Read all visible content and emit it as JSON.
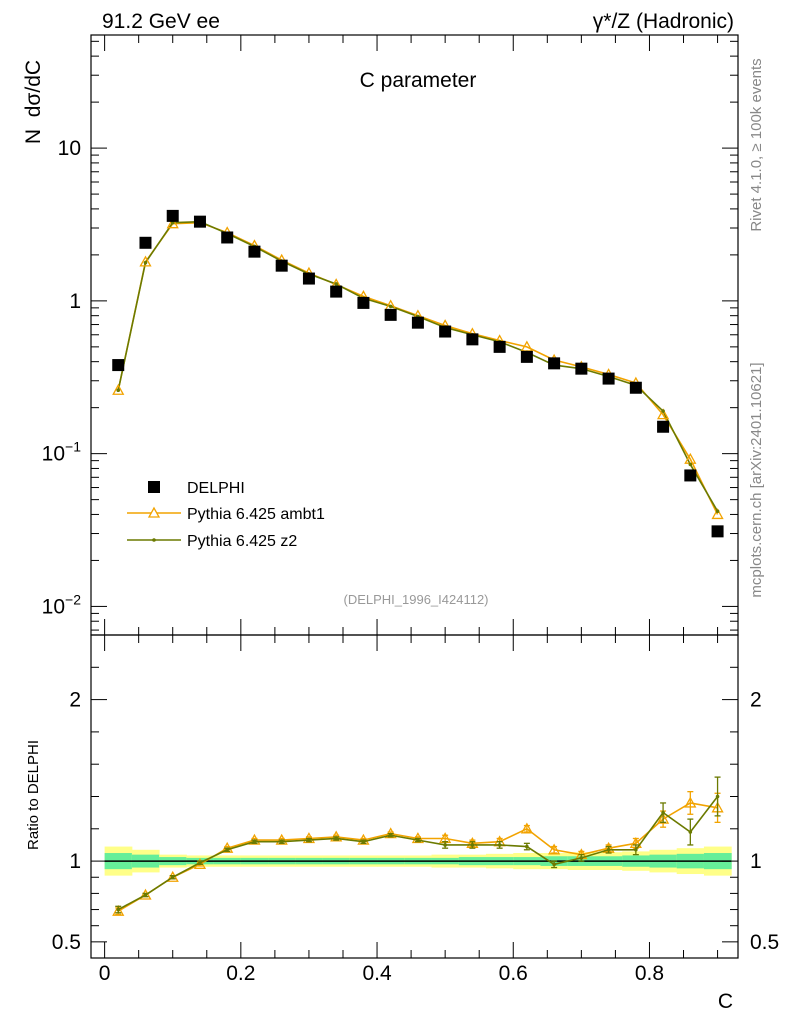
{
  "header": {
    "left": "91.2 GeV ee",
    "right": "γ*/Z (Hadronic)"
  },
  "side_labels": {
    "rivet": "Rivet 4.1.0, ≥ 100k events",
    "mcplots": "mcplots.cern.ch [arXiv:2401.10621]"
  },
  "chart_data": [
    {
      "panel": "main",
      "type": "scatter",
      "title": "C parameter",
      "xlabel": "C",
      "ylabel": "N  dσ/dC",
      "yscale": "log",
      "xlim": [
        -0.02,
        0.93
      ],
      "ylim": [
        0.0065,
        55
      ],
      "ytick_labels": [
        {
          "value": 0.01,
          "base": "10",
          "exp": "−2"
        },
        {
          "value": 0.1,
          "base": "10",
          "exp": "−1"
        },
        {
          "value": 1,
          "base": "1",
          "exp": ""
        },
        {
          "value": 10,
          "base": "10",
          "exp": ""
        }
      ],
      "watermark": "(DELPHI_1996_I424112)",
      "legend_position": "left",
      "x": [
        0.02,
        0.06,
        0.1,
        0.14,
        0.18,
        0.22,
        0.26,
        0.3,
        0.34,
        0.38,
        0.42,
        0.46,
        0.5,
        0.54,
        0.58,
        0.62,
        0.66,
        0.7,
        0.74,
        0.78,
        0.82,
        0.86,
        0.9
      ],
      "series": [
        {
          "name": "DELPHI",
          "color": "#000000",
          "marker": "square",
          "values": [
            0.38,
            2.4,
            3.6,
            3.3,
            2.6,
            2.1,
            1.7,
            1.4,
            1.15,
            0.97,
            0.81,
            0.72,
            0.63,
            0.56,
            0.5,
            0.43,
            0.39,
            0.36,
            0.31,
            0.27,
            0.15,
            0.072,
            0.031
          ]
        },
        {
          "name": "Pythia 6.425 ambt1",
          "color": "#f2a300",
          "marker": "triangle",
          "values": [
            0.26,
            1.8,
            3.2,
            3.25,
            2.8,
            2.3,
            1.85,
            1.52,
            1.28,
            1.07,
            0.93,
            0.8,
            0.69,
            0.61,
            0.55,
            0.5,
            0.41,
            0.37,
            0.33,
            0.29,
            0.18,
            0.092,
            0.04
          ]
        },
        {
          "name": "Pythia 6.425 z2",
          "color": "#6b7a00",
          "marker": "dot",
          "values": [
            0.26,
            1.78,
            3.25,
            3.3,
            2.76,
            2.27,
            1.82,
            1.5,
            1.29,
            1.04,
            0.92,
            0.79,
            0.67,
            0.6,
            0.54,
            0.46,
            0.38,
            0.36,
            0.32,
            0.28,
            0.19,
            0.085,
            0.042
          ]
        }
      ]
    },
    {
      "panel": "ratio",
      "type": "line",
      "ylabel": "Ratio to DELPHI",
      "xlabel": "C",
      "xlim": [
        -0.02,
        0.93
      ],
      "ylim": [
        0.4,
        2.4
      ],
      "yticks": [
        0.5,
        1,
        2
      ],
      "ytick_labels": [
        "0.5",
        "1",
        "2"
      ],
      "xticks": [
        0,
        0.2,
        0.4,
        0.6,
        0.8
      ],
      "xtick_labels": [
        "0",
        "0.2",
        "0.4",
        "0.6",
        "0.8"
      ],
      "reference": 1,
      "bands": {
        "x_edges": [
          0.0,
          0.04,
          0.08,
          0.12,
          0.16,
          0.2,
          0.24,
          0.28,
          0.32,
          0.36,
          0.4,
          0.44,
          0.48,
          0.52,
          0.56,
          0.6,
          0.64,
          0.68,
          0.72,
          0.76,
          0.8,
          0.84,
          0.88,
          0.92
        ],
        "inner": [
          0.05,
          0.04,
          0.025,
          0.02,
          0.02,
          0.02,
          0.02,
          0.02,
          0.02,
          0.02,
          0.02,
          0.02,
          0.02,
          0.025,
          0.025,
          0.025,
          0.03,
          0.03,
          0.03,
          0.035,
          0.04,
          0.045,
          0.05
        ],
        "outer": [
          0.09,
          0.07,
          0.04,
          0.035,
          0.035,
          0.035,
          0.035,
          0.035,
          0.035,
          0.035,
          0.035,
          0.035,
          0.04,
          0.04,
          0.045,
          0.05,
          0.05,
          0.055,
          0.055,
          0.06,
          0.07,
          0.08,
          0.09
        ],
        "inner_color": "#66ee99",
        "outer_color": "#ffff88"
      },
      "x": [
        0.02,
        0.06,
        0.1,
        0.14,
        0.18,
        0.22,
        0.26,
        0.3,
        0.34,
        0.38,
        0.42,
        0.46,
        0.5,
        0.54,
        0.58,
        0.62,
        0.66,
        0.7,
        0.74,
        0.78,
        0.82,
        0.86,
        0.9
      ],
      "series": [
        {
          "name": "Pythia 6.425 ambt1",
          "color": "#f2a300",
          "marker": "triangle",
          "values": [
            0.69,
            0.79,
            0.9,
            0.98,
            1.08,
            1.13,
            1.13,
            1.14,
            1.15,
            1.13,
            1.17,
            1.14,
            1.14,
            1.11,
            1.12,
            1.2,
            1.07,
            1.04,
            1.08,
            1.11,
            1.26,
            1.36,
            1.33
          ],
          "errors": [
            0.02,
            0.01,
            0.01,
            0.01,
            0.01,
            0.01,
            0.01,
            0.01,
            0.01,
            0.01,
            0.01,
            0.01,
            0.02,
            0.02,
            0.02,
            0.02,
            0.02,
            0.02,
            0.02,
            0.03,
            0.05,
            0.07,
            0.09
          ]
        },
        {
          "name": "Pythia 6.425 z2",
          "color": "#6b7a00",
          "marker": "dot",
          "values": [
            0.7,
            0.79,
            0.9,
            0.99,
            1.07,
            1.12,
            1.12,
            1.13,
            1.14,
            1.12,
            1.16,
            1.13,
            1.1,
            1.1,
            1.1,
            1.09,
            0.98,
            1.02,
            1.07,
            1.07,
            1.3,
            1.18,
            1.4
          ],
          "errors": [
            0.02,
            0.01,
            0.01,
            0.01,
            0.01,
            0.01,
            0.01,
            0.01,
            0.01,
            0.01,
            0.01,
            0.01,
            0.02,
            0.02,
            0.02,
            0.02,
            0.02,
            0.02,
            0.02,
            0.03,
            0.06,
            0.08,
            0.12
          ]
        }
      ]
    }
  ]
}
